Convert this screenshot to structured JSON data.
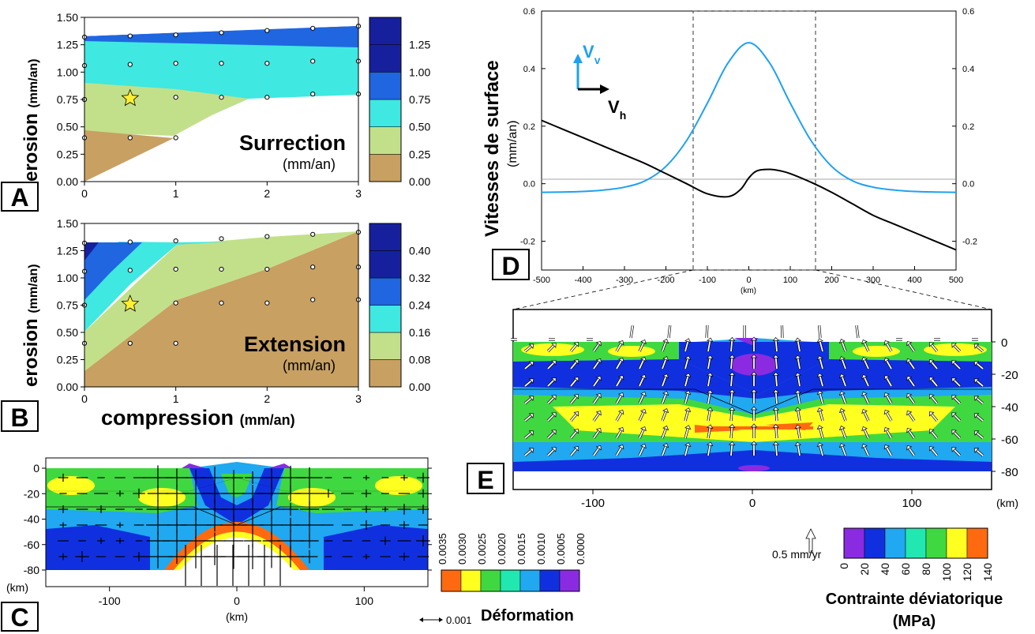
{
  "colors": {
    "surrection_scale": [
      "#c8a062",
      "#c2e08a",
      "#3fe8e0",
      "#1f66e0",
      "#17209c"
    ],
    "stress_scale": [
      "#8a2be2",
      "#1030e0",
      "#20a8f0",
      "#20e8b0",
      "#40d840",
      "#ffff20",
      "#ff6a10"
    ],
    "strain_scale": [
      "#ff6a10",
      "#ffff20",
      "#40d840",
      "#20e8b0",
      "#20a8f0",
      "#1030e0",
      "#8a2be2"
    ],
    "vv_line": "#1fa0f0",
    "vh_line": "#000000"
  },
  "panels": {
    "a": {
      "letter": "A",
      "ylabel_main": "erosion",
      "ylabel_unit": "(mm/an)",
      "title": "Surrection",
      "unit": "(mm/an)"
    },
    "b": {
      "letter": "B",
      "ylabel_main": "erosion",
      "ylabel_unit": "(mm/an)",
      "title": "Extension",
      "unit": "(mm/an)",
      "xlabel_main": "compression",
      "xlabel_unit": "(mm/an)"
    },
    "c": {
      "letter": "C",
      "xunit": "(km)",
      "yunit": "(km)",
      "scale_arrow": "0.001",
      "legend_title": "Déformation"
    },
    "d": {
      "letter": "D",
      "ylabel_main": "Vitesses de surface",
      "ylabel_unit": "(mm/an)",
      "xunit": "(km)",
      "vv_label": "V",
      "vv_sub": "v",
      "vh_label": "V",
      "vh_sub": "h"
    },
    "e": {
      "letter": "E",
      "xunit": "(km)",
      "scale_arrow": "0.5 mm/yr",
      "legend_title_1": "Contrainte déviatorique",
      "legend_title_2": "(MPa)"
    }
  },
  "chart_data": [
    {
      "id": "A",
      "type": "heatmap",
      "title": "Surrection",
      "subtitle": "(mm/an)",
      "xlabel": "",
      "ylabel": "erosion (mm/an)",
      "xlim": [
        0,
        3
      ],
      "ylim": [
        0,
        1.5
      ],
      "xticks": [
        "0",
        "1",
        "2",
        "3"
      ],
      "yticks": [
        "0.00",
        "0.25",
        "0.50",
        "0.75",
        "1.00",
        "1.25",
        "1.50"
      ],
      "colorbar": {
        "ticks": [
          "0.00",
          "0.25",
          "0.50",
          "0.75",
          "1.00",
          "1.25"
        ]
      },
      "points": [
        {
          "x": 0,
          "y": 0.4
        },
        {
          "x": 0,
          "y": 0.75
        },
        {
          "x": 0,
          "y": 1.06
        },
        {
          "x": 0,
          "y": 1.32
        },
        {
          "x": 0.5,
          "y": 0.4
        },
        {
          "x": 0.5,
          "y": 0.77
        },
        {
          "x": 0.5,
          "y": 1.07
        },
        {
          "x": 0.5,
          "y": 1.33
        },
        {
          "x": 1,
          "y": 0.4
        },
        {
          "x": 1,
          "y": 0.77
        },
        {
          "x": 1,
          "y": 1.08
        },
        {
          "x": 1,
          "y": 1.34
        },
        {
          "x": 1.5,
          "y": 0.77
        },
        {
          "x": 1.5,
          "y": 1.08
        },
        {
          "x": 1.5,
          "y": 1.36
        },
        {
          "x": 2,
          "y": 0.77
        },
        {
          "x": 2,
          "y": 1.08
        },
        {
          "x": 2,
          "y": 1.38
        },
        {
          "x": 2.5,
          "y": 0.8
        },
        {
          "x": 2.5,
          "y": 1.1
        },
        {
          "x": 2.5,
          "y": 1.4
        },
        {
          "x": 3,
          "y": 0.8
        },
        {
          "x": 3,
          "y": 1.1
        },
        {
          "x": 3,
          "y": 1.42
        }
      ],
      "star": {
        "x": 0.5,
        "y": 0.76
      }
    },
    {
      "id": "B",
      "type": "heatmap",
      "title": "Extension",
      "subtitle": "(mm/an)",
      "xlabel": "compression (mm/an)",
      "ylabel": "erosion (mm/an)",
      "xlim": [
        0,
        3
      ],
      "ylim": [
        0,
        1.5
      ],
      "xticks": [
        "0",
        "1",
        "2",
        "3"
      ],
      "yticks": [
        "0.00",
        "0.25",
        "0.50",
        "0.75",
        "1.00",
        "1.25",
        "1.50"
      ],
      "colorbar": {
        "ticks": [
          "0.00",
          "0.08",
          "0.16",
          "0.24",
          "0.32",
          "0.40"
        ]
      },
      "points": [
        {
          "x": 0,
          "y": 0.4
        },
        {
          "x": 0,
          "y": 0.75
        },
        {
          "x": 0,
          "y": 1.06
        },
        {
          "x": 0,
          "y": 1.32
        },
        {
          "x": 0.5,
          "y": 0.4
        },
        {
          "x": 0.5,
          "y": 0.77
        },
        {
          "x": 0.5,
          "y": 1.07
        },
        {
          "x": 0.5,
          "y": 1.33
        },
        {
          "x": 1,
          "y": 0.4
        },
        {
          "x": 1,
          "y": 0.77
        },
        {
          "x": 1,
          "y": 1.08
        },
        {
          "x": 1,
          "y": 1.34
        },
        {
          "x": 1.5,
          "y": 0.77
        },
        {
          "x": 1.5,
          "y": 1.08
        },
        {
          "x": 1.5,
          "y": 1.36
        },
        {
          "x": 2,
          "y": 0.77
        },
        {
          "x": 2,
          "y": 1.08
        },
        {
          "x": 2,
          "y": 1.38
        },
        {
          "x": 2.5,
          "y": 0.8
        },
        {
          "x": 2.5,
          "y": 1.1
        },
        {
          "x": 2.5,
          "y": 1.4
        },
        {
          "x": 3,
          "y": 0.8
        },
        {
          "x": 3,
          "y": 1.1
        },
        {
          "x": 3,
          "y": 1.42
        }
      ],
      "star": {
        "x": 0.5,
        "y": 0.76
      }
    },
    {
      "id": "C",
      "type": "heatmap",
      "xlabel": "(km)",
      "ylabel": "(km)",
      "xlim": [
        -150,
        150
      ],
      "ylim": [
        -80,
        20
      ],
      "xticks": [
        "-100",
        "0",
        "100"
      ],
      "yticks": [
        "0",
        "-20",
        "-40",
        "-60",
        "-80"
      ],
      "colorbar": {
        "title": "Déformation",
        "ticks": [
          "0.0035",
          "0.0030",
          "0.0025",
          "0.0020",
          "0.0015",
          "0.0010",
          "0.0005",
          "0.0000"
        ]
      },
      "scale_arrow": "0.001"
    },
    {
      "id": "D",
      "type": "line",
      "xlabel": "(km)",
      "ylabel": "Vitesses de surface (mm/an)",
      "xlim": [
        -500,
        500
      ],
      "ylim": [
        -0.3,
        0.6
      ],
      "xticks": [
        "-500",
        "-400",
        "-300",
        "-200",
        "-100",
        "0",
        "100",
        "200",
        "300",
        "400",
        "500"
      ],
      "yticks": [
        "-0.2",
        "0.0",
        "0.2",
        "0.4",
        "0.6"
      ],
      "yticks_right": [
        "-0.2",
        "0.0",
        "0.2",
        "0.4",
        "0.6"
      ],
      "window": [
        -150,
        150
      ],
      "series": [
        {
          "name": "Vv",
          "color": "#1fa0f0",
          "x": [
            -500,
            -450,
            -400,
            -350,
            -300,
            -250,
            -200,
            -150,
            -100,
            -50,
            0,
            50,
            100,
            150,
            200,
            250,
            300,
            350,
            400,
            450,
            500
          ],
          "y": [
            -0.03,
            -0.029,
            -0.027,
            -0.022,
            -0.012,
            0.01,
            0.06,
            0.15,
            0.28,
            0.42,
            0.49,
            0.42,
            0.28,
            0.15,
            0.06,
            0.01,
            -0.012,
            -0.022,
            -0.027,
            -0.029,
            -0.03
          ]
        },
        {
          "name": "Vh",
          "color": "#000000",
          "x": [
            -500,
            -450,
            -400,
            -350,
            -300,
            -250,
            -200,
            -150,
            -100,
            -50,
            -20,
            0,
            20,
            50,
            75,
            100,
            150,
            200,
            250,
            300,
            350,
            400,
            450,
            500
          ],
          "y": [
            0.22,
            0.19,
            0.16,
            0.13,
            0.1,
            0.07,
            0.035,
            0.0,
            -0.035,
            -0.045,
            -0.02,
            0.02,
            0.045,
            0.05,
            0.045,
            0.035,
            0.005,
            -0.03,
            -0.07,
            -0.11,
            -0.14,
            -0.17,
            -0.2,
            -0.23
          ]
        }
      ]
    },
    {
      "id": "E",
      "type": "heatmap",
      "xlabel": "(km)",
      "xlim": [
        -150,
        150
      ],
      "ylim": [
        -80,
        20
      ],
      "xticks": [
        "-100",
        "0",
        "100"
      ],
      "yticks": [
        "0",
        "-20",
        "-40",
        "-60",
        "-80"
      ],
      "colorbar": {
        "title": "Contrainte déviatorique (MPa)",
        "ticks": [
          "0",
          "20",
          "40",
          "60",
          "80",
          "100",
          "120",
          "140"
        ]
      },
      "scale_arrow": "0.5 mm/yr"
    }
  ]
}
